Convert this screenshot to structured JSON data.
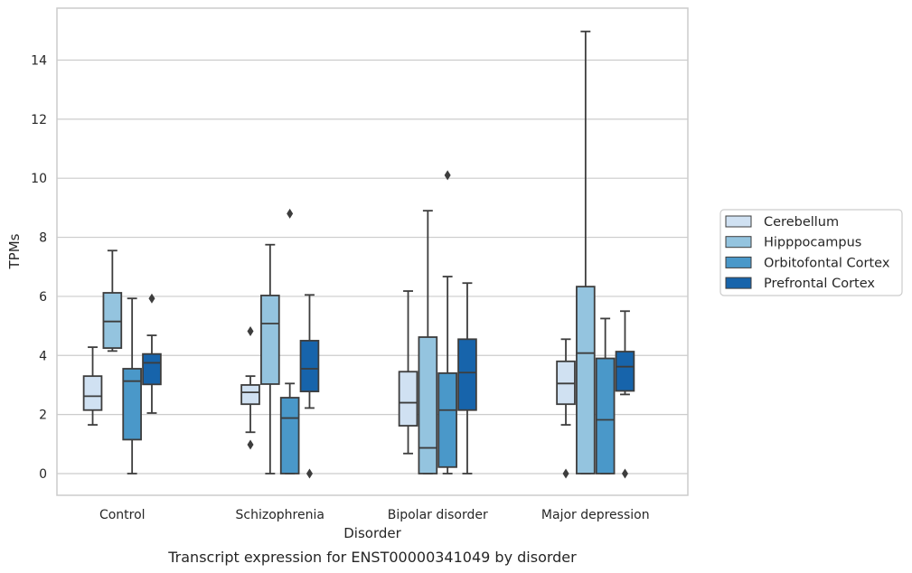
{
  "chart_data": {
    "type": "box",
    "title": "",
    "caption": "Transcript expression for ENST00000341049 by disorder",
    "xlabel": "Disorder",
    "ylabel": "TPMs",
    "ylim": [
      -0.7,
      15.5
    ],
    "yticks": [
      0,
      2,
      4,
      6,
      8,
      10,
      12,
      14
    ],
    "grid": "horizontal",
    "legend_position": "right",
    "categories": [
      "Control",
      "Schizophrenia",
      "Bipolar disorder",
      "Major depression"
    ],
    "series": [
      {
        "name": "Cerebellum",
        "color": "#d0e1f2",
        "boxes": [
          {
            "whislo": 1.65,
            "q1": 2.15,
            "med": 2.62,
            "q3": 3.3,
            "whishi": 4.28,
            "fliers": []
          },
          {
            "whislo": 1.4,
            "q1": 2.35,
            "med": 2.75,
            "q3": 3.0,
            "whishi": 3.3,
            "fliers": [
              0.98,
              4.82
            ]
          },
          {
            "whislo": 0.68,
            "q1": 1.62,
            "med": 2.4,
            "q3": 3.45,
            "whishi": 6.18,
            "fliers": []
          },
          {
            "whislo": 1.65,
            "q1": 2.35,
            "med": 3.05,
            "q3": 3.8,
            "whishi": 4.55,
            "fliers": [
              0.0
            ]
          }
        ]
      },
      {
        "name": "Hipppocampus",
        "color": "#94c4df",
        "boxes": [
          {
            "whislo": 4.15,
            "q1": 4.25,
            "med": 5.15,
            "q3": 6.12,
            "whishi": 7.55,
            "fliers": []
          },
          {
            "whislo": 0.0,
            "q1": 3.03,
            "med": 5.08,
            "q3": 6.03,
            "whishi": 7.75,
            "fliers": []
          },
          {
            "whislo": 0.0,
            "q1": 0.0,
            "med": 0.87,
            "q3": 4.62,
            "whishi": 8.9,
            "fliers": []
          },
          {
            "whislo": 0.0,
            "q1": 0.0,
            "med": 4.08,
            "q3": 6.33,
            "whishi": 14.97,
            "fliers": []
          }
        ]
      },
      {
        "name": "Orbitofontal Cortex",
        "color": "#4a98c9",
        "boxes": [
          {
            "whislo": 0.0,
            "q1": 1.15,
            "med": 3.13,
            "q3": 3.55,
            "whishi": 5.93,
            "fliers": []
          },
          {
            "whislo": 0.0,
            "q1": 0.0,
            "med": 1.88,
            "q3": 2.57,
            "whishi": 3.05,
            "fliers": [
              8.8
            ]
          },
          {
            "whislo": 0.0,
            "q1": 0.22,
            "med": 2.15,
            "q3": 3.4,
            "whishi": 6.67,
            "fliers": [
              10.1
            ]
          },
          {
            "whislo": 0.0,
            "q1": 0.0,
            "med": 1.82,
            "q3": 3.9,
            "whishi": 5.25,
            "fliers": []
          }
        ]
      },
      {
        "name": "Prefrontal Cortex",
        "color": "#1764ab",
        "boxes": [
          {
            "whislo": 2.05,
            "q1": 3.02,
            "med": 3.75,
            "q3": 4.05,
            "whishi": 4.68,
            "fliers": [
              5.93
            ]
          },
          {
            "whislo": 2.22,
            "q1": 2.78,
            "med": 3.55,
            "q3": 4.5,
            "whishi": 6.05,
            "fliers": [
              0.0
            ]
          },
          {
            "whislo": 0.0,
            "q1": 2.15,
            "med": 3.42,
            "q3": 4.55,
            "whishi": 6.45,
            "fliers": []
          },
          {
            "whislo": 2.68,
            "q1": 2.8,
            "med": 3.62,
            "q3": 4.13,
            "whishi": 5.5,
            "fliers": [
              0.0
            ]
          }
        ]
      }
    ]
  }
}
